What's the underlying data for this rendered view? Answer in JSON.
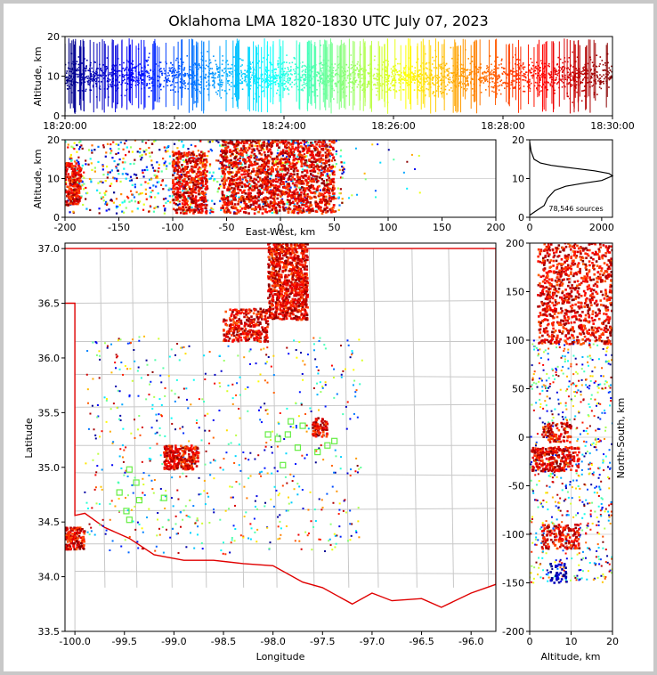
{
  "chart_data": [
    {
      "type": "scatter",
      "panel": "altitude-time",
      "title": "Oklahoma LMA 1820-1830 UTC July 07, 2023",
      "xlabel": "",
      "ylabel": "Altitude, km",
      "x_ticks": [
        "18:20:00",
        "18:22:00",
        "18:24:00",
        "18:26:00",
        "18:28:00",
        "18:30:00"
      ],
      "xlim": [
        "18:20:00",
        "18:30:00"
      ],
      "ylim": [
        0,
        20
      ],
      "y_ticks": [
        0,
        10,
        20
      ],
      "colormap": "jet",
      "color_by": "time"
    },
    {
      "type": "scatter",
      "panel": "altitude-east-west",
      "xlabel": "East-West, km",
      "ylabel": "Altitude, km",
      "xlim": [
        -200,
        200
      ],
      "x_ticks": [
        -200,
        -150,
        -100,
        -50,
        0,
        50,
        100,
        150,
        200
      ],
      "ylim": [
        0,
        20
      ],
      "y_ticks": [
        0,
        10,
        20
      ],
      "clusters_x": [
        [
          -200,
          -185
        ],
        [
          -100,
          -70
        ],
        [
          -55,
          50
        ]
      ]
    },
    {
      "type": "line",
      "panel": "altitude-histogram",
      "annotation": "78,546 sources",
      "xlim": [
        0,
        2300
      ],
      "x_ticks": [
        0,
        2000
      ],
      "ylim": [
        0,
        20
      ],
      "y_ticks": [
        0,
        10,
        20
      ],
      "profile": [
        [
          0,
          0.5
        ],
        [
          150,
          1.5
        ],
        [
          400,
          3
        ],
        [
          500,
          5
        ],
        [
          700,
          7
        ],
        [
          1000,
          8
        ],
        [
          1500,
          8.8
        ],
        [
          2000,
          9.5
        ],
        [
          2300,
          10.7
        ],
        [
          2200,
          11.3
        ],
        [
          1800,
          12
        ],
        [
          1200,
          12.7
        ],
        [
          600,
          13.4
        ],
        [
          300,
          14
        ],
        [
          120,
          15
        ],
        [
          40,
          17
        ],
        [
          0,
          19.5
        ]
      ]
    },
    {
      "type": "scatter",
      "panel": "plan-view",
      "xlabel": "Longitude",
      "ylabel": "Latitude",
      "xlim": [
        -100.1,
        -95.75
      ],
      "ylim": [
        33.5,
        37.05
      ],
      "x_ticks": [
        -100.0,
        -99.5,
        -99.0,
        -98.5,
        -98.0,
        -97.5,
        -97.0,
        -96.5,
        -96.0
      ],
      "y_ticks": [
        33.5,
        34.0,
        34.5,
        35.0,
        35.5,
        36.0,
        36.5,
        37.0
      ],
      "stations": [
        [
          -99.55,
          34.77
        ],
        [
          -99.45,
          34.52
        ],
        [
          -99.48,
          34.6
        ],
        [
          -99.38,
          34.86
        ],
        [
          -99.35,
          34.7
        ],
        [
          -99.1,
          34.72
        ],
        [
          -99.45,
          34.98
        ],
        [
          -97.95,
          35.26
        ],
        [
          -97.9,
          35.02
        ],
        [
          -97.82,
          35.42
        ],
        [
          -97.75,
          35.18
        ],
        [
          -97.7,
          35.38
        ],
        [
          -97.55,
          35.14
        ],
        [
          -97.45,
          35.2
        ],
        [
          -97.38,
          35.24
        ],
        [
          -98.05,
          35.3
        ],
        [
          -97.85,
          35.3
        ]
      ]
    },
    {
      "type": "scatter",
      "panel": "north-south-altitude",
      "xlabel": "Altitude, km",
      "ylabel": "North-South, km",
      "xlim": [
        0,
        20
      ],
      "x_ticks": [
        0,
        10,
        20
      ],
      "ylim": [
        -200,
        200
      ],
      "y_ticks": [
        -200,
        -150,
        -100,
        -50,
        0,
        50,
        100,
        150,
        200
      ]
    }
  ]
}
